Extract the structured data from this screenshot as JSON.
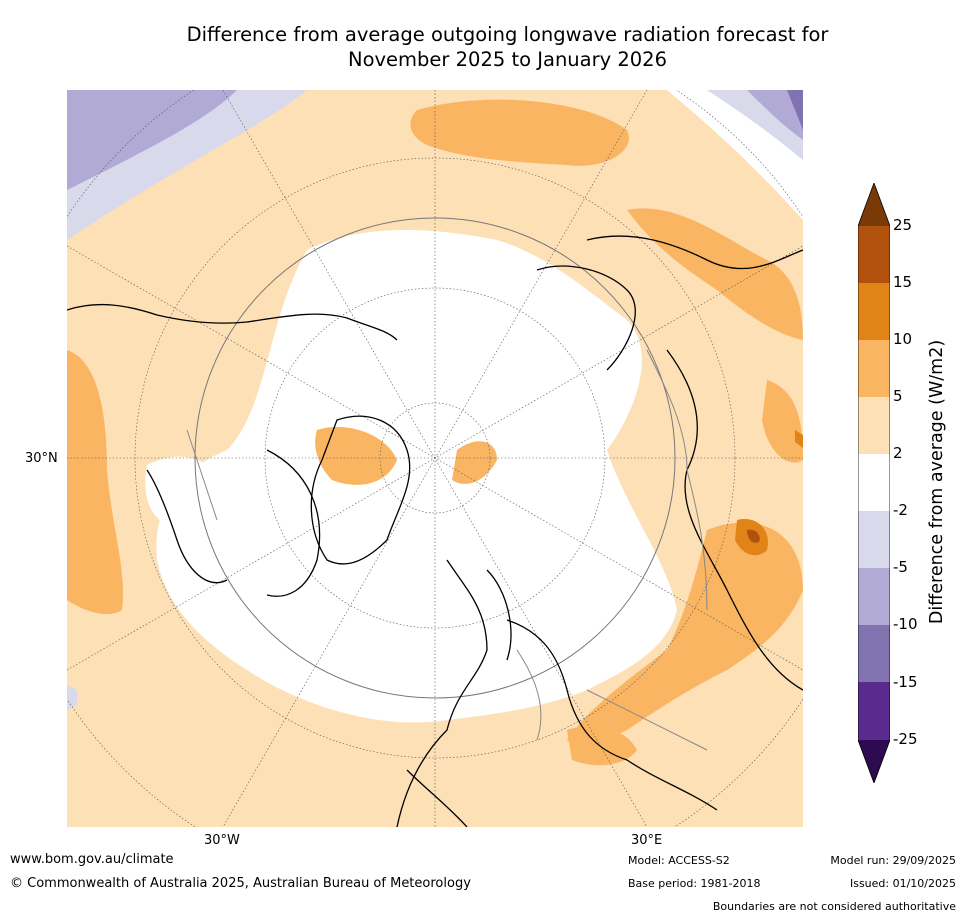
{
  "title": {
    "line1": "Difference from average outgoing longwave radiation forecast for",
    "line2": "November 2025 to January 2026"
  },
  "axis_labels": {
    "lat_30n": "30°N",
    "lon_30w": "30°W",
    "lon_30e": "30°E"
  },
  "colorbar": {
    "label": "Difference from average (W/m2)",
    "ticks": [
      "25",
      "15",
      "10",
      "5",
      "2",
      "-2",
      "-5",
      "-10",
      "-15",
      "-25"
    ],
    "colors": {
      "over": "#7a3a08",
      "b15_25": "#b0520e",
      "b10_15": "#e08417",
      "b5_10": "#f9b561",
      "b2_5": "#fde0b6",
      "b_2_2": "#ffffff",
      "bm5_m2": "#d9d9ec",
      "bm10_m5": "#b1aad4",
      "bm15_m10": "#8173b0",
      "bm25_m15": "#5a2a8e",
      "under": "#2e0a50"
    }
  },
  "footer": {
    "website": "www.bom.gov.au/climate",
    "copyright": "© Commonwealth of Australia 2025, Australian Bureau of Meteorology",
    "model": "Model: ACCESS-S2",
    "base_period": "Base period: 1981-2018",
    "model_run": "Model run: 29/09/2025",
    "issued": "Issued: 01/10/2025",
    "disclaimer": "Boundaries are not considered authoritative"
  }
}
